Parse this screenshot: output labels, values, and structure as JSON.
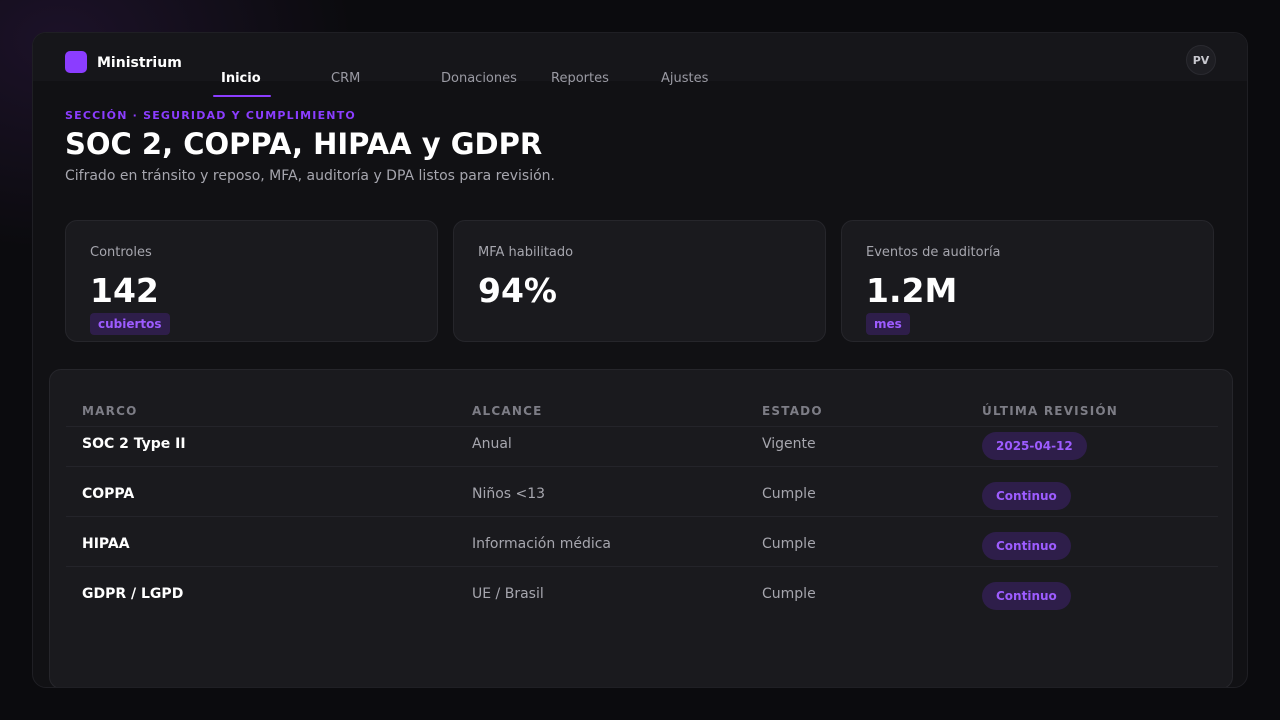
{
  "app": {
    "name": "Ministrium",
    "user_initials": "PV"
  },
  "nav": {
    "items": [
      {
        "label": "Inicio",
        "active": true
      },
      {
        "label": "CRM",
        "active": false
      },
      {
        "label": "Donaciones",
        "active": false
      },
      {
        "label": "Reportes",
        "active": false
      },
      {
        "label": "Ajustes",
        "active": false
      }
    ]
  },
  "header": {
    "eyebrow": "SECCIÓN · SEGURIDAD Y CUMPLIMIENTO",
    "title": "SOC 2, COPPA, HIPAA y GDPR",
    "subtitle": "Cifrado en tránsito y reposo, MFA, auditoría y DPA listos para revisión."
  },
  "stats": [
    {
      "label": "Controles",
      "value": "142",
      "chip": "cubiertos"
    },
    {
      "label": "MFA habilitado",
      "value": "94%",
      "chip": ""
    },
    {
      "label": "Eventos de auditoría",
      "value": "1.2M",
      "chip": "mes"
    }
  ],
  "table": {
    "headers": [
      "MARCO",
      "ALCANCE",
      "ESTADO",
      "ÚLTIMA REVISIÓN"
    ],
    "rows": [
      {
        "marco": "SOC 2 Type II",
        "alcance": "Anual",
        "estado": "Vigente",
        "revision": "2025-04-12"
      },
      {
        "marco": "COPPA",
        "alcance": "Niños <13",
        "estado": "Cumple",
        "revision": "Continuo"
      },
      {
        "marco": "HIPAA",
        "alcance": "Información médica",
        "estado": "Cumple",
        "revision": "Continuo"
      },
      {
        "marco": "GDPR / LGPD",
        "alcance": "UE / Brasil",
        "estado": "Cumple",
        "revision": "Continuo"
      }
    ]
  },
  "colors": {
    "accent": "#8b3dff",
    "chip_bg": "#2e1e4a",
    "chip_text": "#9d5cff"
  }
}
